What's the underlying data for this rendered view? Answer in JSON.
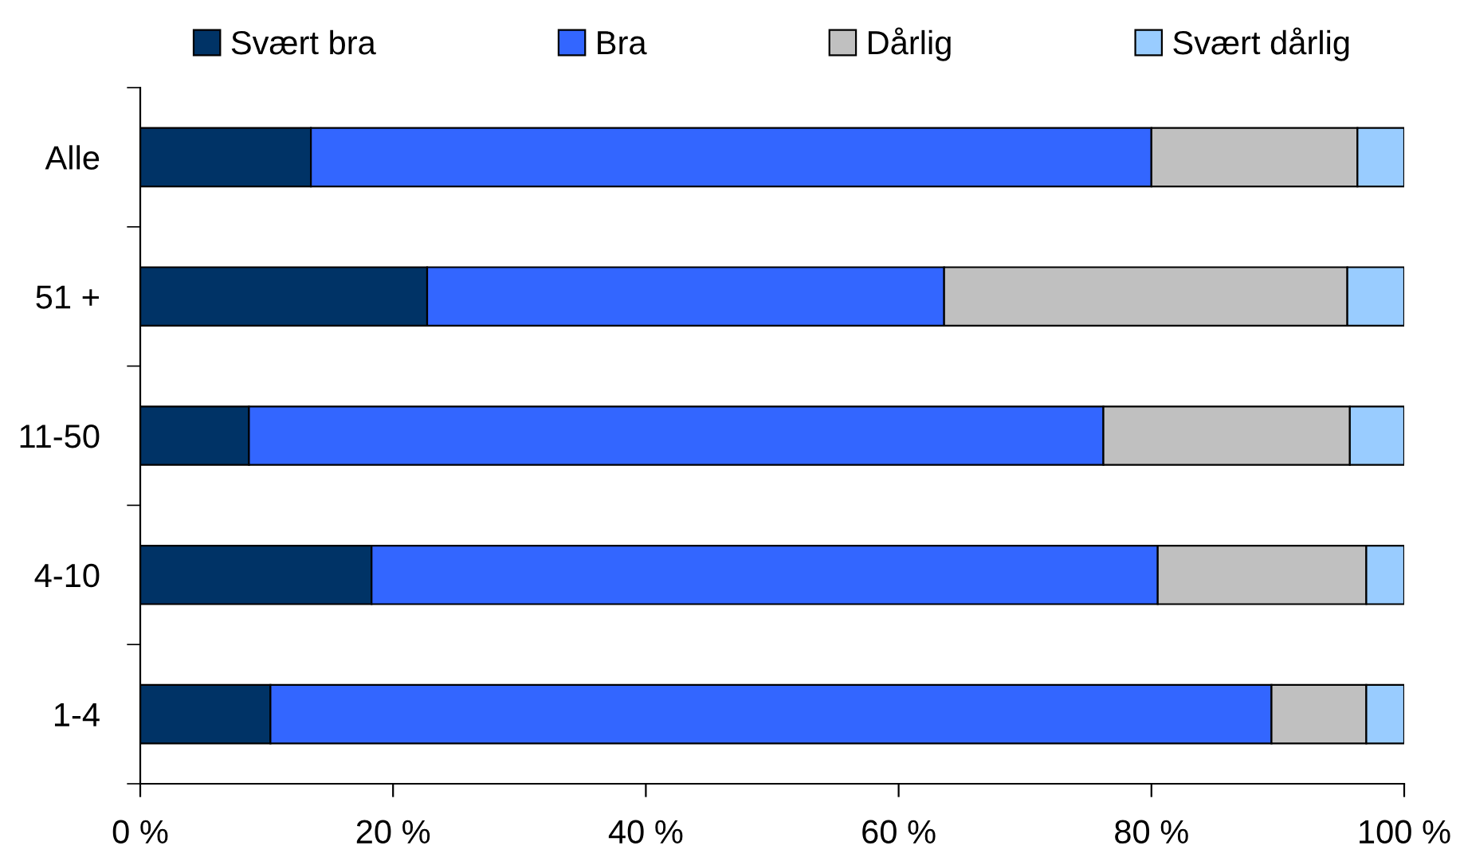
{
  "chart_data": {
    "type": "bar",
    "orientation": "horizontal",
    "stacked": true,
    "legend": "top",
    "grid": false,
    "categories": [
      "Alle",
      "51 +",
      "11-50",
      "4-10",
      "1-4"
    ],
    "series": [
      {
        "name": "Svært bra",
        "color": "#003366",
        "values": [
          13.5,
          22.7,
          8.6,
          18.3,
          10.3
        ]
      },
      {
        "name": "Bra",
        "color": "#3366ff",
        "values": [
          66.5,
          40.9,
          67.6,
          62.2,
          79.2
        ]
      },
      {
        "name": "Dårlig",
        "color": "#c0c0c0",
        "values": [
          16.3,
          31.9,
          19.5,
          16.5,
          7.5
        ]
      },
      {
        "name": "Svært dårlig",
        "color": "#99ccff",
        "values": [
          3.7,
          4.5,
          4.3,
          3.0,
          3.0
        ]
      }
    ],
    "xlim": [
      0,
      100
    ],
    "xticks": [
      {
        "value": 0,
        "label": "0 %"
      },
      {
        "value": 20,
        "label": "20 %"
      },
      {
        "value": 40,
        "label": "40 %"
      },
      {
        "value": 60,
        "label": "60 %"
      },
      {
        "value": 80,
        "label": "80 %"
      },
      {
        "value": 100,
        "label": "100 %"
      }
    ]
  }
}
